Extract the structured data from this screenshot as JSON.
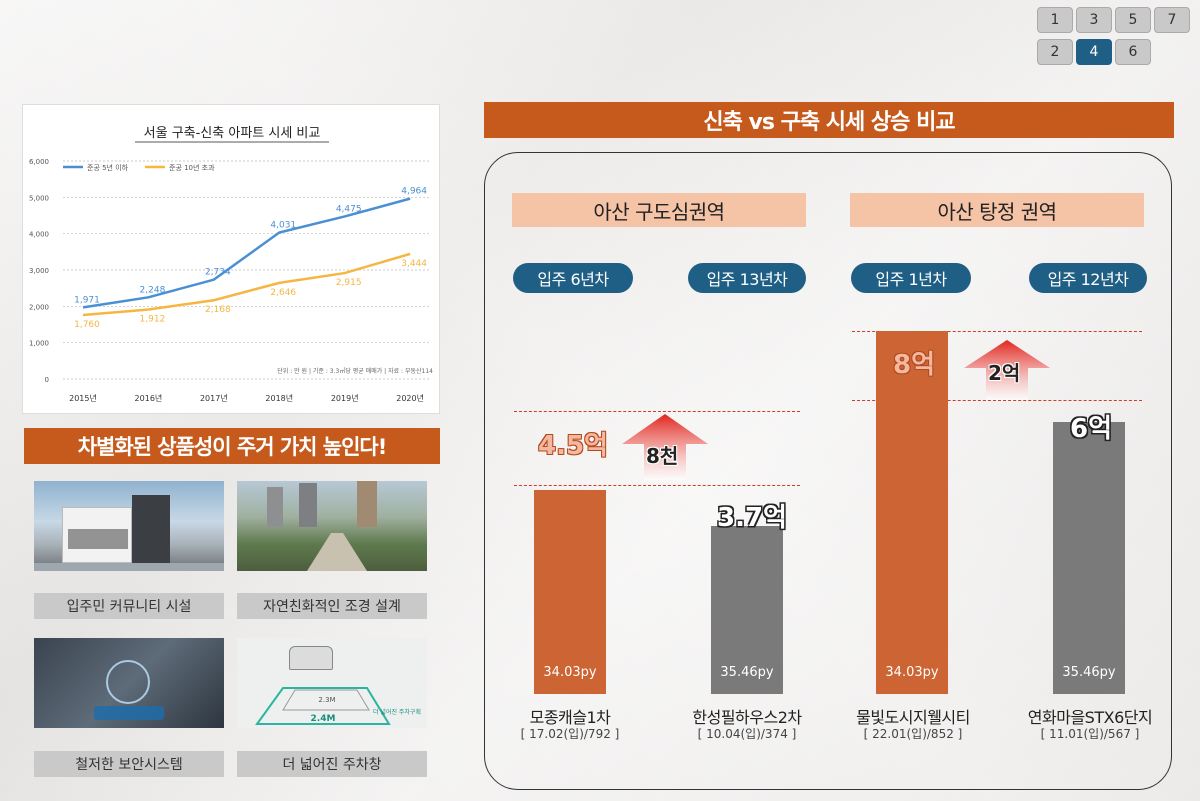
{
  "pager": {
    "pages": [
      "1",
      "3",
      "5",
      "7",
      "2",
      "4",
      "6"
    ],
    "active": "4"
  },
  "line_chart": {
    "title": "서울 구축-신축 아파트 시세 비교",
    "legend": [
      "준공 5년 이하",
      "준공 10년 초과"
    ],
    "footnote": "단위 : 만 원 | 기준 : 3.3㎡당 평균 매매가 | 자료 : 부동산114",
    "y_ticks": [
      "6,000",
      "5,000",
      "4,000",
      "3,000",
      "2,000",
      "1,000",
      "0"
    ],
    "data_labels_new": [
      "1,971",
      "2,248",
      "2,734",
      "4,031",
      "4,475",
      "4,964"
    ],
    "data_labels_old": [
      "1,760",
      "1,912",
      "2,168",
      "2,646",
      "2,915",
      "3,444"
    ]
  },
  "chart_data": {
    "type": "line",
    "title": "서울 구축-신축 아파트 시세 비교",
    "categories": [
      "2015년",
      "2016년",
      "2017년",
      "2018년",
      "2019년",
      "2020년"
    ],
    "series": [
      {
        "name": "준공 5년 이하",
        "values": [
          1971,
          2248,
          2734,
          4031,
          4475,
          4964
        ],
        "color": "#4a8fd4"
      },
      {
        "name": "준공 10년 초과",
        "values": [
          1760,
          1912,
          2168,
          2646,
          2915,
          3444
        ],
        "color": "#f5b642"
      }
    ],
    "ylim": [
      0,
      6000
    ],
    "grid": true,
    "legend_position": "top-left"
  },
  "left": {
    "slogan": "차별화된 상품성이 주거 가치 높인다!",
    "features": [
      {
        "label": "입주민 커뮤니티 시설"
      },
      {
        "label": "자연친화적인 조경 설계"
      },
      {
        "label": "철저한 보안시스템"
      },
      {
        "label": "더 넓어진 주차창"
      }
    ],
    "parking_img": {
      "narrow": "2.3M",
      "wide": "2.4M",
      "note": "더 넓어진 주차구획"
    }
  },
  "right": {
    "title": "신축 vs 구축 시세 상승 비교",
    "regions": [
      "아산 구도심권역",
      "아산 탕정 권역"
    ],
    "apartments": [
      {
        "badge": "입주 6년차",
        "price": "4.5억",
        "size": "34.03py",
        "name": "모종캐슬1차",
        "sub": "[ 17.02(입)/792 ]",
        "price_eok": 4.5
      },
      {
        "badge": "입주 13년차",
        "price": "3.7억",
        "size": "35.46py",
        "name": "한성필하우스2차",
        "sub": "[ 10.04(입)/374 ]",
        "price_eok": 3.7
      },
      {
        "badge": "입주 1년차",
        "price": "8억",
        "size": "34.03py",
        "name": "물빛도시지웰시티",
        "sub": "[ 22.01(입)/852 ]",
        "price_eok": 8
      },
      {
        "badge": "입주 12년차",
        "price": "6억",
        "size": "35.46py",
        "name": "연화마을STX6단지",
        "sub": "[ 11.01(입)/567 ]",
        "price_eok": 6
      }
    ],
    "diffs": [
      "8천",
      "2억"
    ],
    "colors": {
      "orange": "#cd6433",
      "gray": "#7a7a7a",
      "navy": "#1f5f85",
      "peach": "#f5c3a6"
    }
  }
}
